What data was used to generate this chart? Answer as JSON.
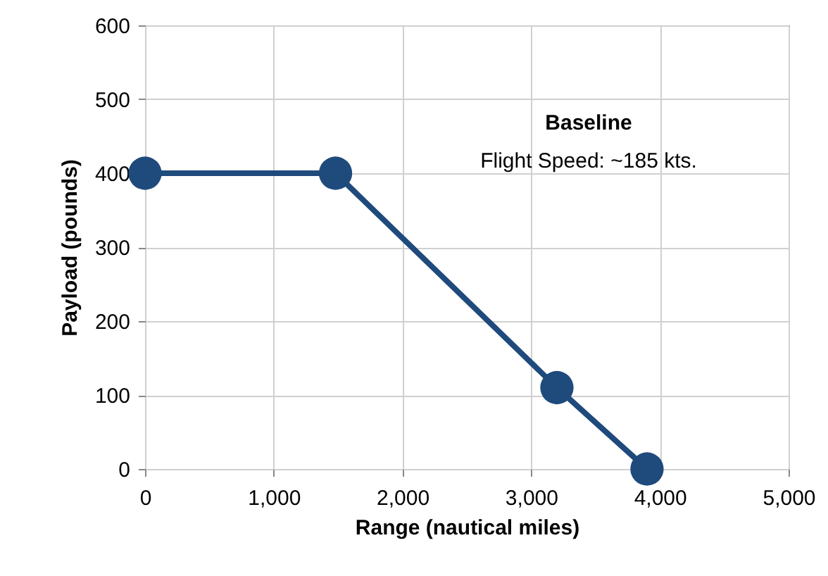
{
  "chart_data": {
    "type": "line",
    "xlabel": "Range (nautical miles)",
    "ylabel": "Payload (pounds)",
    "x": [
      0,
      1480,
      3200,
      3900
    ],
    "series": [
      {
        "color": "#1f4a7c",
        "values": [
          400,
          400,
          110,
          0
        ]
      }
    ],
    "xlim": [
      0,
      5000
    ],
    "xticks": [
      0,
      {
        "value": 1000,
        "label": "1,000"
      },
      {
        "value": 2000,
        "label": "2,000"
      },
      {
        "value": 3000,
        "label": "3,000"
      },
      {
        "value": 4000,
        "label": "4,000"
      },
      {
        "value": 5000,
        "label": "5,000"
      }
    ],
    "ylim": [
      0,
      600
    ],
    "yticks": [
      0,
      100,
      200,
      300,
      400,
      500,
      600
    ],
    "annotations": [
      "Baseline",
      "Flight Speed: ~185 kts."
    ],
    "grid": true,
    "marker": "circle",
    "line_style": "solid"
  }
}
